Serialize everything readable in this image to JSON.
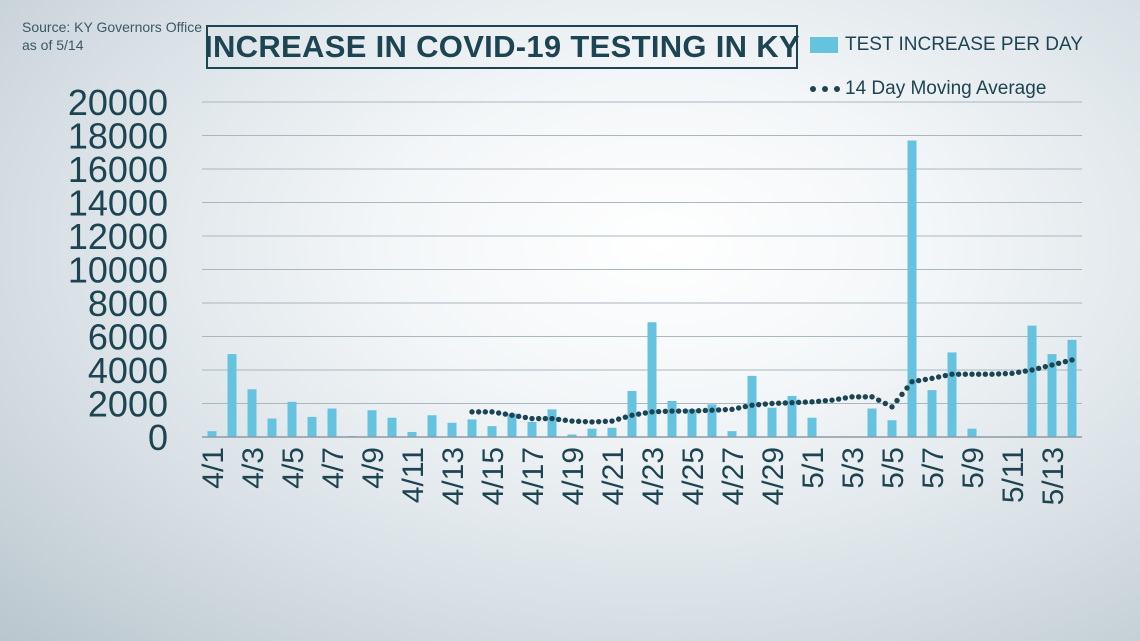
{
  "source": {
    "line1": "Source: KY Governors Office",
    "line2": "as of 5/14"
  },
  "chart_data": {
    "type": "bar",
    "title": "INCREASE IN COVID-19 TESTING IN KY",
    "xlabel": "",
    "ylabel": "",
    "ylim": [
      0,
      20000
    ],
    "yticks": [
      0,
      2000,
      4000,
      6000,
      8000,
      10000,
      12000,
      14000,
      16000,
      18000,
      20000
    ],
    "grid": true,
    "legend_position": "top-right",
    "categories": [
      "4/1",
      "4/2",
      "4/3",
      "4/4",
      "4/5",
      "4/6",
      "4/7",
      "4/8",
      "4/9",
      "4/10",
      "4/11",
      "4/12",
      "4/13",
      "4/14",
      "4/15",
      "4/16",
      "4/17",
      "4/18",
      "4/19",
      "4/20",
      "4/21",
      "4/22",
      "4/23",
      "4/24",
      "4/25",
      "4/26",
      "4/27",
      "4/28",
      "4/29",
      "4/30",
      "5/1",
      "5/2",
      "5/3",
      "5/4",
      "5/5",
      "5/6",
      "5/7",
      "5/8",
      "5/9",
      "5/10",
      "5/11",
      "5/12",
      "5/13",
      "5/14"
    ],
    "tick_labels": [
      "4/1",
      "4/3",
      "4/5",
      "4/7",
      "4/9",
      "4/11",
      "4/13",
      "4/15",
      "4/17",
      "4/19",
      "4/21",
      "4/23",
      "4/25",
      "4/27",
      "4/29",
      "5/1",
      "5/3",
      "5/5",
      "5/7",
      "5/9",
      "5/11",
      "5/13"
    ],
    "series": [
      {
        "name": "TEST INCREASE PER DAY",
        "type": "bar",
        "color": "#66c3df",
        "values": [
          350,
          4950,
          2850,
          1100,
          2100,
          1200,
          1700,
          50,
          1600,
          1150,
          300,
          1300,
          850,
          1050,
          650,
          1400,
          900,
          1650,
          150,
          500,
          550,
          2750,
          6850,
          2150,
          1650,
          1950,
          350,
          3650,
          1750,
          2450,
          1150,
          0,
          0,
          1700,
          1000,
          17700,
          2800,
          5050,
          500,
          0,
          0,
          6650,
          4950,
          5800
        ]
      },
      {
        "name": "14 Day Moving Average",
        "type": "line",
        "style": "dotted",
        "color": "#1d4452",
        "values": [
          null,
          null,
          null,
          null,
          null,
          null,
          null,
          null,
          null,
          null,
          null,
          null,
          null,
          1500,
          1500,
          1300,
          1100,
          1100,
          950,
          900,
          950,
          1300,
          1500,
          1550,
          1550,
          1600,
          1650,
          1900,
          2000,
          2050,
          2100,
          2200,
          2400,
          2400,
          1800,
          3300,
          3500,
          3750,
          3750,
          3750,
          3800,
          4000,
          4300,
          4600
        ]
      }
    ]
  }
}
